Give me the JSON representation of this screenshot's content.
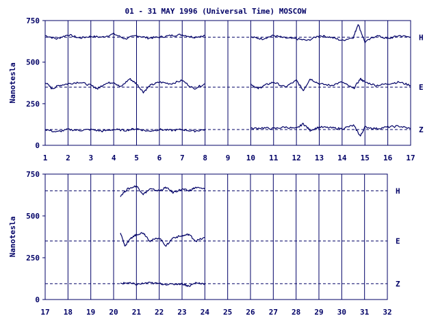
{
  "title": "01 - 31 MAY 1996 (Universal Time) MOSCOW",
  "colors": {
    "ink": "#000066",
    "background": "#ffffff"
  },
  "chart_data": [
    {
      "type": "line",
      "panel": "top",
      "ylabel": "Nanotesla",
      "ylim": [
        0,
        750
      ],
      "yticks": [
        "0",
        "250",
        "500",
        "750"
      ],
      "xlim": [
        1,
        17
      ],
      "xticks": [
        "1",
        "2",
        "3",
        "4",
        "5",
        "6",
        "7",
        "8",
        "9",
        "10",
        "11",
        "12",
        "13",
        "14",
        "15",
        "16",
        "17"
      ],
      "grid": "vertical lines at each day",
      "component_labels": [
        "H",
        "E",
        "Z"
      ],
      "baselines": [
        650,
        350,
        95
      ],
      "series": [
        {
          "name": "H",
          "segments": [
            {
              "x": [
                1.0,
                1.5,
                2.0,
                2.5,
                3.0,
                3.5,
                4.0,
                4.5,
                5.0,
                5.5,
                6.0,
                6.5,
                7.0,
                7.5,
                8.0
              ],
              "y": [
                660,
                640,
                665,
                645,
                655,
                650,
                670,
                640,
                660,
                645,
                650,
                660,
                665,
                650,
                660
              ]
            },
            {
              "x": [
                10.0,
                10.5,
                11.0,
                11.5,
                12.0,
                12.5,
                13.0,
                13.5,
                14.0,
                14.5,
                14.7,
                15.0,
                15.5,
                16.0,
                16.5,
                17.0
              ],
              "y": [
                650,
                640,
                660,
                645,
                640,
                630,
                660,
                650,
                630,
                650,
                730,
                620,
                660,
                640,
                660,
                650
              ]
            }
          ]
        },
        {
          "name": "E",
          "segments": [
            {
              "x": [
                1.0,
                1.3,
                1.6,
                2.0,
                2.5,
                3.0,
                3.3,
                3.6,
                4.0,
                4.3,
                4.7,
                5.0,
                5.3,
                5.6,
                6.0,
                6.5,
                7.0,
                7.5,
                8.0
              ],
              "y": [
                380,
                340,
                360,
                370,
                380,
                360,
                340,
                370,
                380,
                350,
                400,
                370,
                320,
                360,
                380,
                370,
                390,
                340,
                370
              ]
            },
            {
              "x": [
                10.0,
                10.3,
                10.6,
                11.0,
                11.5,
                12.0,
                12.3,
                12.6,
                13.0,
                13.5,
                14.0,
                14.5,
                14.8,
                15.0,
                15.5,
                16.0,
                16.5,
                17.0
              ],
              "y": [
                370,
                340,
                360,
                380,
                350,
                390,
                330,
                400,
                370,
                360,
                380,
                340,
                400,
                380,
                360,
                370,
                380,
                360
              ]
            }
          ]
        },
        {
          "name": "Z",
          "segments": [
            {
              "x": [
                1.0,
                1.5,
                2.0,
                2.5,
                3.0,
                3.5,
                4.0,
                4.5,
                5.0,
                5.5,
                6.0,
                6.5,
                7.0,
                7.5,
                8.0
              ],
              "y": [
                95,
                80,
                95,
                90,
                95,
                85,
                95,
                90,
                100,
                85,
                95,
                90,
                95,
                85,
                95
              ]
            },
            {
              "x": [
                10.0,
                10.5,
                11.0,
                11.5,
                12.0,
                12.3,
                12.6,
                13.0,
                13.5,
                14.0,
                14.5,
                14.8,
                15.0,
                15.5,
                16.0,
                16.5,
                17.0
              ],
              "y": [
                100,
                105,
                100,
                110,
                100,
                130,
                90,
                110,
                105,
                100,
                120,
                55,
                110,
                100,
                110,
                115,
                100
              ]
            }
          ]
        }
      ]
    },
    {
      "type": "line",
      "panel": "bottom",
      "ylabel": "Nanotesla",
      "ylim": [
        0,
        750
      ],
      "yticks": [
        "0",
        "250",
        "500",
        "750"
      ],
      "xlim": [
        17,
        32
      ],
      "xticks": [
        "17",
        "18",
        "19",
        "20",
        "21",
        "22",
        "23",
        "24",
        "25",
        "26",
        "27",
        "28",
        "29",
        "30",
        "31",
        "32"
      ],
      "grid": "vertical lines at each day",
      "component_labels": [
        "H",
        "E",
        "Z"
      ],
      "baselines": [
        650,
        350,
        95
      ],
      "series": [
        {
          "name": "H",
          "segments": [
            {
              "x": [
                20.3,
                20.6,
                21.0,
                21.3,
                21.6,
                22.0,
                22.3,
                22.6,
                23.0,
                23.3,
                23.6,
                24.0
              ],
              "y": [
                620,
                660,
                680,
                630,
                660,
                650,
                670,
                640,
                660,
                650,
                670,
                660
              ]
            }
          ]
        },
        {
          "name": "E",
          "segments": [
            {
              "x": [
                20.3,
                20.5,
                20.8,
                21.0,
                21.3,
                21.6,
                22.0,
                22.3,
                22.6,
                23.0,
                23.3,
                23.6,
                24.0
              ],
              "y": [
                400,
                320,
                370,
                390,
                400,
                350,
                370,
                320,
                370,
                380,
                390,
                350,
                370
              ]
            }
          ]
        },
        {
          "name": "Z",
          "segments": [
            {
              "x": [
                20.3,
                20.6,
                21.0,
                21.5,
                22.0,
                22.5,
                23.0,
                23.3,
                23.6,
                24.0
              ],
              "y": [
                95,
                100,
                90,
                100,
                95,
                90,
                95,
                80,
                100,
                95
              ]
            }
          ]
        }
      ]
    }
  ]
}
